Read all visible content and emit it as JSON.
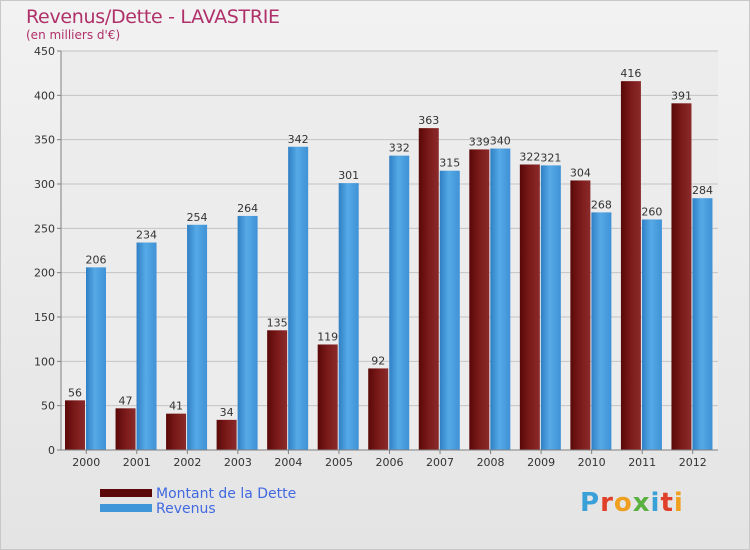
{
  "title": "Revenus/Dette - LAVASTRIE",
  "subtitle": "(en milliers d'€)",
  "legend": [
    {
      "label": "Montant de la Dette",
      "color": "#5a0808"
    },
    {
      "label": "Revenus",
      "color": "#3f96d8"
    }
  ],
  "logo": {
    "text": "Proxiti",
    "letters": [
      {
        "ch": "P",
        "color": "#3aa0d8"
      },
      {
        "ch": "r",
        "color": "#e0402a"
      },
      {
        "ch": "o",
        "color": "#f0a020"
      },
      {
        "ch": "x",
        "color": "#5ab040"
      },
      {
        "ch": "i",
        "color": "#3aa0d8"
      },
      {
        "ch": "t",
        "color": "#e0402a"
      },
      {
        "ch": "i",
        "color": "#f0a020"
      }
    ]
  },
  "chart_data": {
    "type": "bar",
    "title": "Revenus/Dette - LAVASTRIE",
    "subtitle": "(en milliers d'€)",
    "categories": [
      "2000",
      "2001",
      "2002",
      "2003",
      "2004",
      "2005",
      "2006",
      "2007",
      "2008",
      "2009",
      "2010",
      "2011",
      "2012"
    ],
    "series": [
      {
        "name": "Montant de la Dette",
        "color": "#7a1616",
        "values": [
          56,
          47,
          41,
          34,
          135,
          119,
          92,
          363,
          339,
          322,
          304,
          416,
          391
        ]
      },
      {
        "name": "Revenus",
        "color": "#3f96d8",
        "values": [
          206,
          234,
          254,
          264,
          342,
          301,
          332,
          315,
          340,
          321,
          268,
          260,
          284
        ]
      }
    ],
    "ylim": [
      0,
      450
    ],
    "yticks": [
      0,
      50,
      100,
      150,
      200,
      250,
      300,
      350,
      400,
      450
    ],
    "grid": true,
    "legend_position": "bottom-left"
  }
}
